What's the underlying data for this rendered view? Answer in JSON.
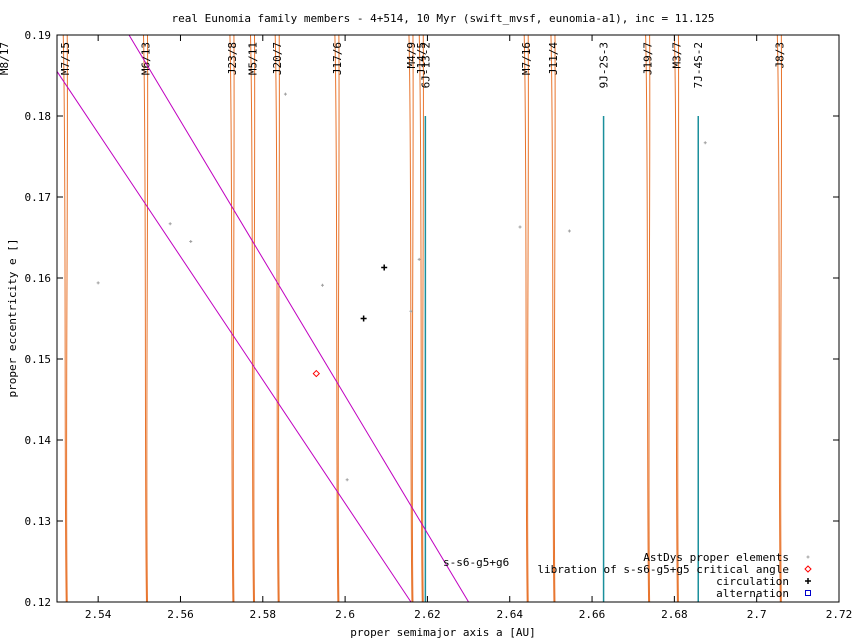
{
  "chart_data": {
    "type": "scatter",
    "title": "real Eunomia family members - 4+514, 10 Myr (swift_mvsf, eunomia-a1), inc = 11.125",
    "xlabel": "proper semimajor axis a [AU]",
    "ylabel": "proper eccentricity e []",
    "xlim": [
      2.53,
      2.72
    ],
    "ylim": [
      0.12,
      0.19
    ],
    "xticks": [
      {
        "v": 2.54,
        "label": "2.54"
      },
      {
        "v": 2.56,
        "label": "2.56"
      },
      {
        "v": 2.58,
        "label": "2.58"
      },
      {
        "v": 2.6,
        "label": "2.6"
      },
      {
        "v": 2.62,
        "label": "2.62"
      },
      {
        "v": 2.64,
        "label": "2.64"
      },
      {
        "v": 2.66,
        "label": "2.66"
      },
      {
        "v": 2.68,
        "label": "2.68"
      },
      {
        "v": 2.7,
        "label": "2.7"
      },
      {
        "v": 2.72,
        "label": "2.72"
      }
    ],
    "yticks": [
      {
        "v": 0.12,
        "label": "0.12"
      },
      {
        "v": 0.13,
        "label": "0.13"
      },
      {
        "v": 0.14,
        "label": "0.14"
      },
      {
        "v": 0.15,
        "label": "0.15"
      },
      {
        "v": 0.16,
        "label": "0.16"
      },
      {
        "v": 0.17,
        "label": "0.17"
      },
      {
        "v": 0.18,
        "label": "0.18"
      },
      {
        "v": 0.19,
        "label": "0.19"
      }
    ],
    "grid": false,
    "legend_position": "bottom-right",
    "resonances_orange": [
      {
        "label": "M7/15",
        "a": 2.532
      },
      {
        "label": "M6/13",
        "a": 2.5515
      },
      {
        "label": "J23/8",
        "a": 2.5725
      },
      {
        "label": "M5/11",
        "a": 2.5775
      },
      {
        "label": "J20/7",
        "a": 2.5835
      },
      {
        "label": "J17/6",
        "a": 2.598
      },
      {
        "label": "M4/9",
        "a": 2.616
      },
      {
        "label": "J14/5",
        "a": 2.6185
      },
      {
        "label": "M7/16",
        "a": 2.644
      },
      {
        "label": "J11/4",
        "a": 2.6505
      },
      {
        "label": "J19/7",
        "a": 2.6735
      },
      {
        "label": "M3/7",
        "a": 2.6805
      },
      {
        "label": "J8/3",
        "a": 2.7055
      }
    ],
    "edge_label": "M8/17",
    "resonances_teal": [
      {
        "label": "6J-13-2",
        "a": 2.6195
      },
      {
        "label": "9J-2S-3",
        "a": 2.6628
      },
      {
        "label": "7J-4S-2",
        "a": 2.6858
      }
    ],
    "secular_resonance": {
      "label": "s-s6-g5+g6",
      "upper": [
        [
          2.5475,
          0.19
        ],
        [
          2.63,
          0.12
        ]
      ],
      "lower": [
        [
          2.53,
          0.1855
        ],
        [
          2.616,
          0.12
        ]
      ]
    },
    "series": [
      {
        "name": "AstDys proper elements",
        "color": "#a0a0a0",
        "marker": "plus-small",
        "points": [
          [
            2.54,
            0.1594
          ],
          [
            2.5575,
            0.1667
          ],
          [
            2.5625,
            0.1645
          ],
          [
            2.5855,
            0.1827
          ],
          [
            2.5945,
            0.1591
          ],
          [
            2.6005,
            0.1351
          ],
          [
            2.616,
            0.1559
          ],
          [
            2.618,
            0.1623
          ],
          [
            2.6425,
            0.1663
          ],
          [
            2.6545,
            0.1658
          ],
          [
            2.6875,
            0.1767
          ]
        ]
      },
      {
        "name": "libration of s-s6-g5+g5 critical angle",
        "color": "#ff0000",
        "marker": "diamond",
        "points": [
          [
            2.593,
            0.1482
          ]
        ]
      },
      {
        "name": "circulation",
        "color": "#000000",
        "marker": "plus",
        "points": [
          [
            2.6095,
            0.1613
          ],
          [
            2.6045,
            0.155
          ]
        ]
      },
      {
        "name": "alternation",
        "color": "#0000cc",
        "marker": "square",
        "points": []
      }
    ]
  }
}
